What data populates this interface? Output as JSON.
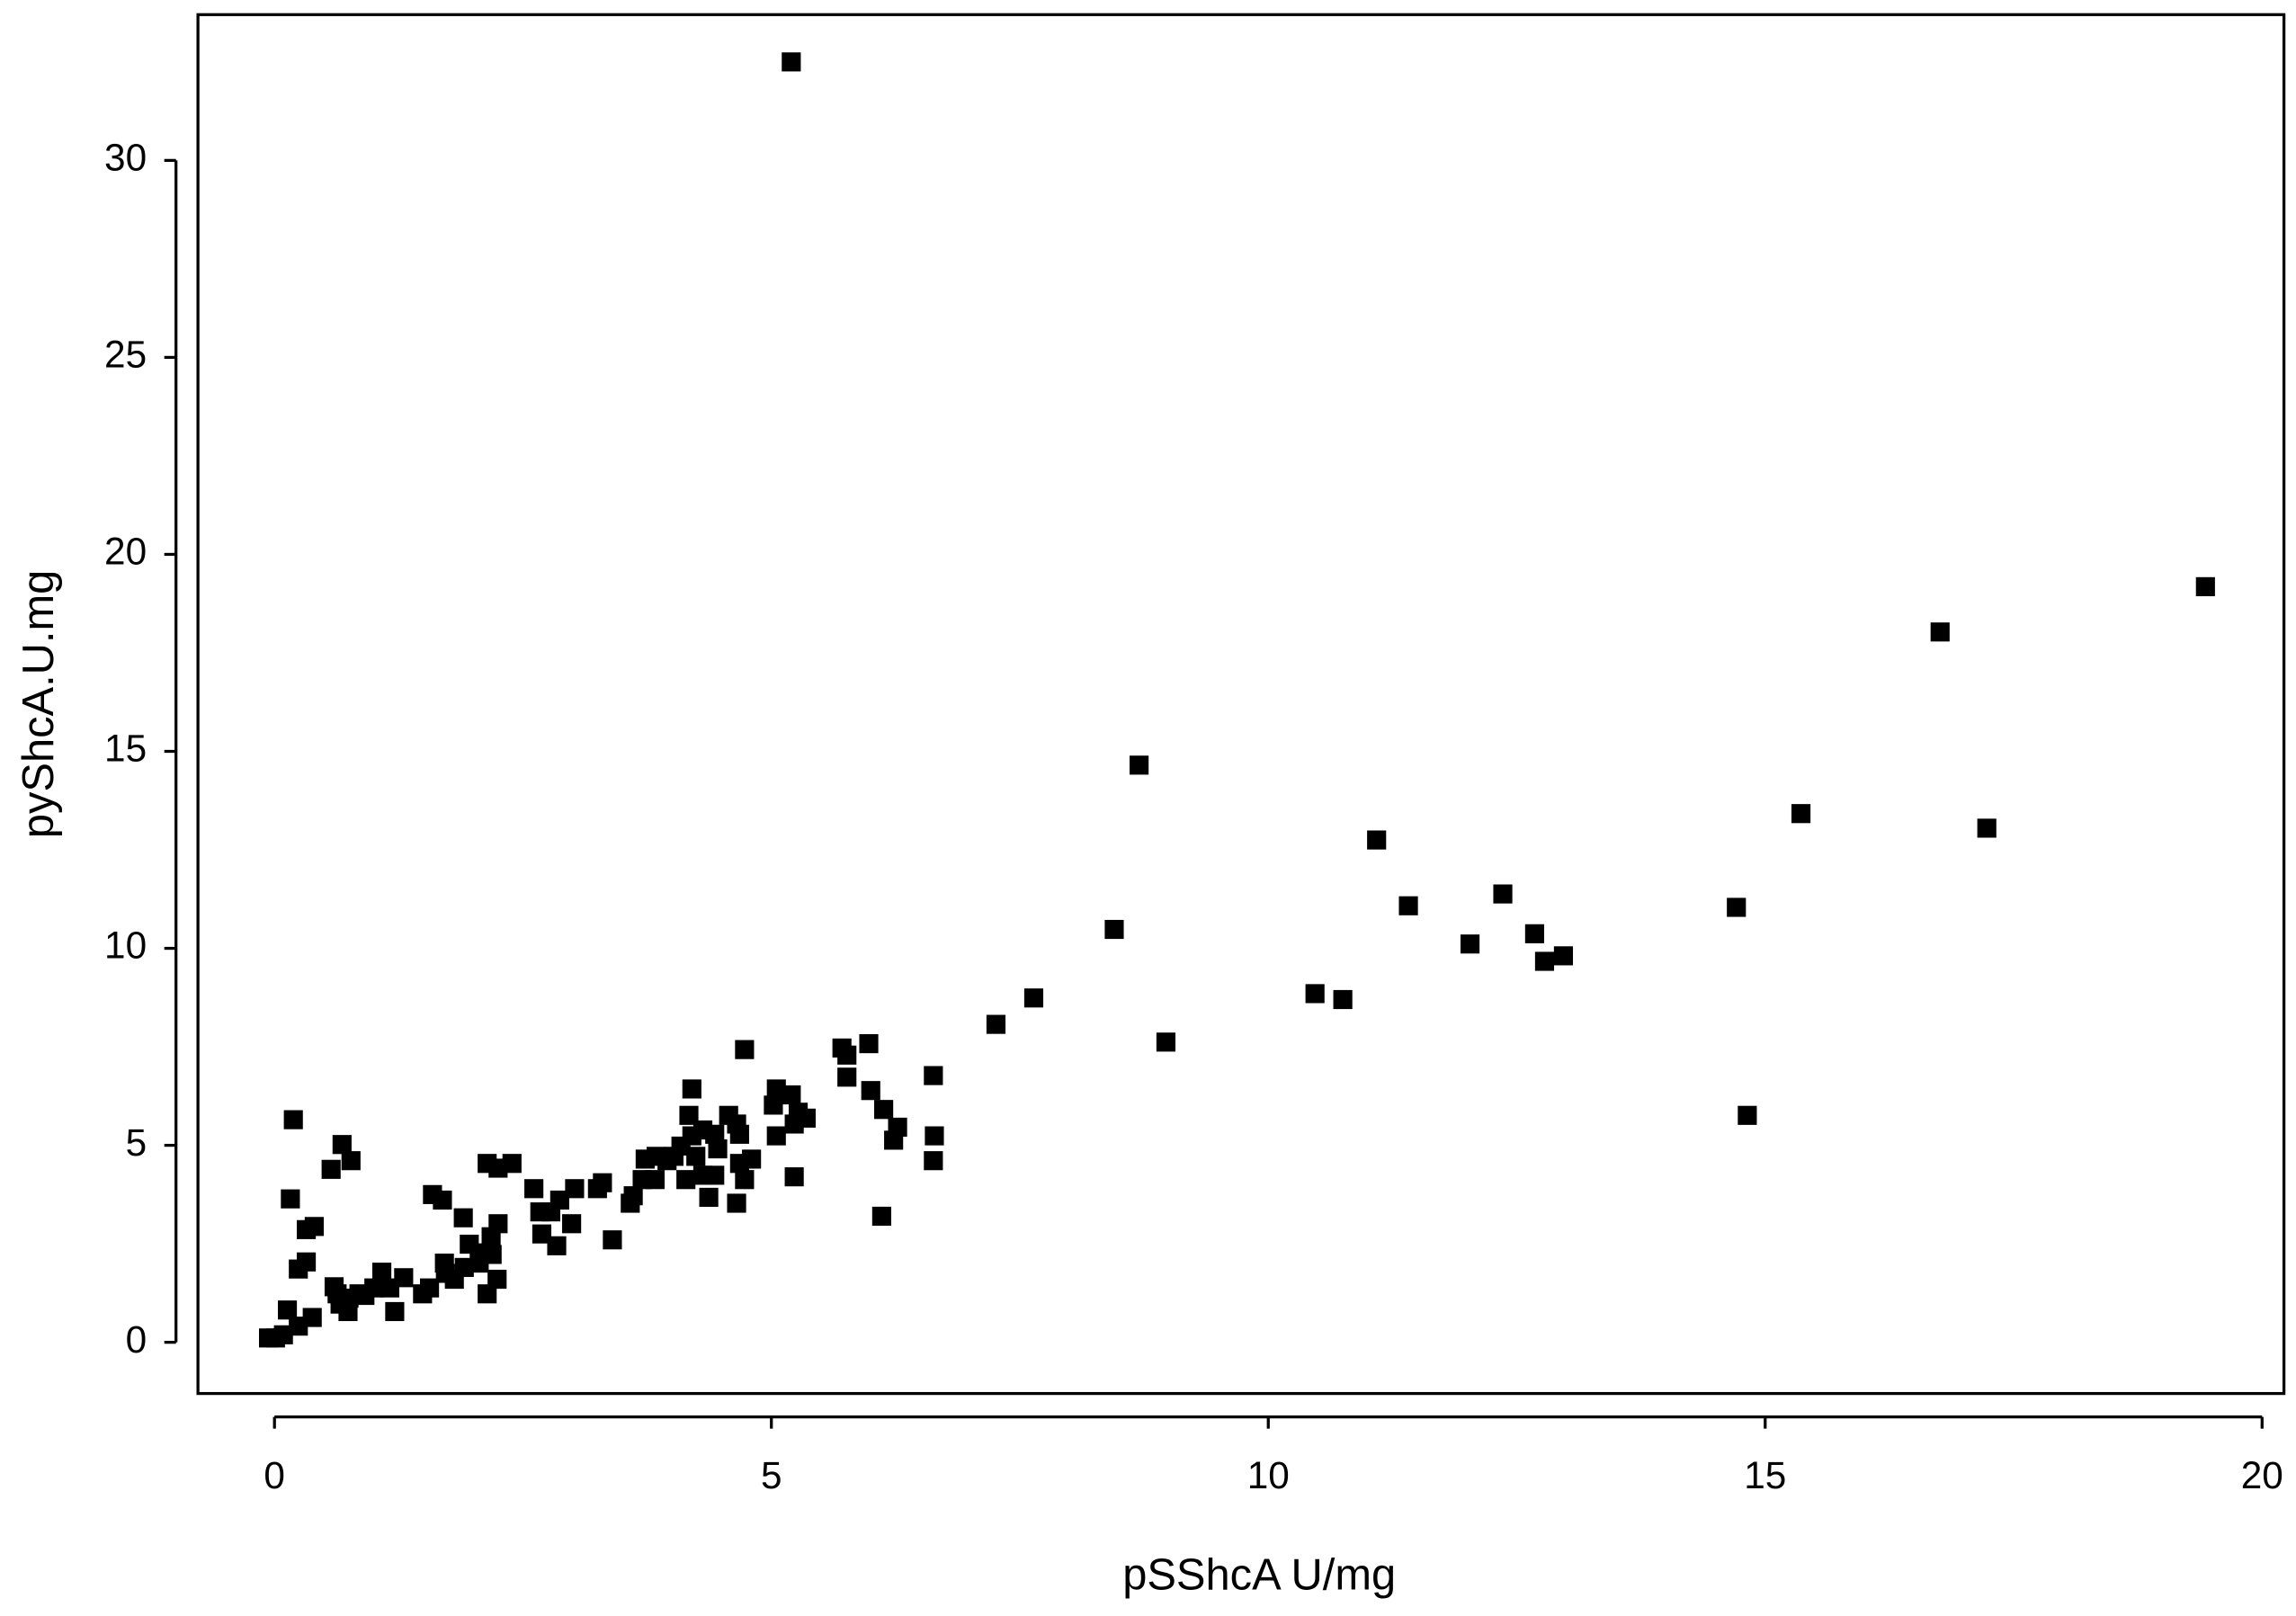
{
  "chart_data": {
    "type": "scatter",
    "x_label": "pSShcA U/mg",
    "y_label": "pyShcA.U.mg",
    "color": "#000000",
    "xlim": [
      -0.77,
      20.22
    ],
    "ylim": [
      -1.3,
      33.7
    ],
    "xticks": [
      0,
      5,
      10,
      15,
      20
    ],
    "yticks": [
      0,
      5,
      10,
      15,
      20,
      25,
      30
    ],
    "x": [
      5.2,
      19.43,
      16.76,
      17.23,
      15.36,
      14.71,
      14.82,
      8.7,
      11.09,
      11.41,
      12.36,
      12.68,
      12.03,
      12.78,
      12.97,
      10.47,
      10.75,
      8.45,
      8.97,
      7.64,
      7.26,
      6.63,
      6.64,
      6.63,
      5.98,
      5.71,
      5.76,
      5.76,
      6.0,
      6.13,
      6.27,
      6.23,
      6.11,
      5.23,
      4.73,
      5.05,
      5.2,
      5.02,
      5.27,
      5.35,
      5.23,
      5.05,
      4.2,
      4.17,
      4.57,
      4.65,
      4.31,
      4.43,
      4.68,
      4.2,
      4.09,
      4.46,
      4.24,
      4.8,
      4.68,
      4.02,
      3.95,
      3.84,
      3.73,
      3.83,
      3.7,
      4.14,
      4.31,
      4.43,
      4.73,
      4.37,
      4.65,
      3.61,
      3.58,
      3.3,
      3.25,
      3.02,
      2.61,
      3.4,
      2.87,
      2.78,
      2.67,
      2.99,
      2.69,
      2.84,
      2.39,
      2.25,
      2.14,
      2.25,
      2.18,
      2.11,
      1.96,
      2.19,
      2.06,
      1.91,
      2.24,
      2.14,
      1.9,
      1.59,
      1.69,
      1.71,
      1.72,
      1.81,
      1.56,
      1.49,
      1.3,
      1.16,
      1.21,
      1.08,
      1.0,
      0.91,
      0.85,
      0.75,
      0.63,
      0.6,
      0.74,
      0.66,
      0.57,
      0.68,
      0.77,
      0.19,
      0.16,
      0.32,
      0.4,
      0.32,
      0.24,
      0.38,
      0.13,
      0.24,
      0.09,
      0.01,
      -0.06
    ],
    "values": [
      32.5,
      19.18,
      18.03,
      13.05,
      13.42,
      11.04,
      5.76,
      14.65,
      12.75,
      11.08,
      11.38,
      10.37,
      10.11,
      9.67,
      9.81,
      8.85,
      8.7,
      10.48,
      7.62,
      8.74,
      8.07,
      6.77,
      5.24,
      4.61,
      7.58,
      7.47,
      7.29,
      6.73,
      6.39,
      5.91,
      5.46,
      5.13,
      3.2,
      4.2,
      7.43,
      6.43,
      6.28,
      6.02,
      5.84,
      5.69,
      5.54,
      5.24,
      6.43,
      5.76,
      5.76,
      5.54,
      5.39,
      5.28,
      5.28,
      5.24,
      4.98,
      4.91,
      4.72,
      4.65,
      4.54,
      4.72,
      4.61,
      4.72,
      4.65,
      4.13,
      4.13,
      4.13,
      4.24,
      4.24,
      4.13,
      3.68,
      3.53,
      3.72,
      3.53,
      4.05,
      3.9,
      3.9,
      3.9,
      2.6,
      3.61,
      3.31,
      3.31,
      3.01,
      2.75,
      2.45,
      4.54,
      4.42,
      4.54,
      3.01,
      2.68,
      2.27,
      2.49,
      2.23,
      2.01,
      1.9,
      1.6,
      1.23,
      3.16,
      3.75,
      3.61,
      2.01,
      1.75,
      1.6,
      1.38,
      1.23,
      1.64,
      1.38,
      0.78,
      1.78,
      1.38,
      1.19,
      1.23,
      1.12,
      1.23,
      1.41,
      0.78,
      0.97,
      4.39,
      5.02,
      4.61,
      5.65,
      3.64,
      2.86,
      2.94,
      2.04,
      1.86,
      0.63,
      0.82,
      0.41,
      0.19,
      0.11,
      0.11
    ]
  }
}
